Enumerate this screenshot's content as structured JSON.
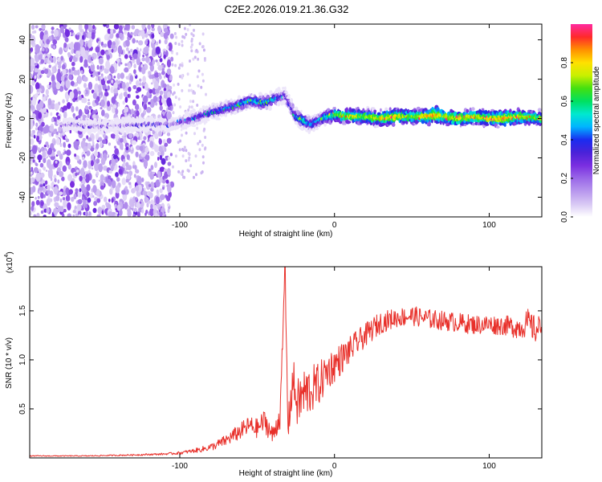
{
  "figure": {
    "title": "C2E2.2026.019.21.36.G32"
  },
  "colors": {
    "axis": "#000000",
    "snr_line": "#e8302a",
    "colormap": [
      "#ffffff",
      "#d8c8f4",
      "#b898ee",
      "#9a68e8",
      "#7a2ee0",
      "#4b22d8",
      "#1b2cf0",
      "#00b4ff",
      "#00e8d0",
      "#00e060",
      "#44e010",
      "#c8f000",
      "#ffe000",
      "#ff9000",
      "#ff2a2a",
      "#ff2aa0"
    ]
  },
  "chart_data": [
    {
      "type": "heatmap",
      "title": "",
      "xlabel": "Height of straight line (km)",
      "ylabel": "Frequency (Hz)",
      "xlim": [
        -197,
        134
      ],
      "ylim": [
        -50,
        48
      ],
      "xticks": [
        -100,
        0,
        100
      ],
      "xtick_labels": [
        "-100",
        "0",
        "100"
      ],
      "yticks": [
        -40,
        -20,
        0,
        20,
        40
      ],
      "ytick_labels": [
        "-40",
        "-20",
        "0",
        "20",
        "40"
      ],
      "colorbar": {
        "label": "Normalized spectral amplitude",
        "range": [
          0,
          1
        ],
        "ticks": [
          0.0,
          0.2,
          0.4,
          0.6,
          0.8
        ],
        "tick_labels": [
          "0.0",
          "0.2",
          "0.4",
          "0.6",
          "0.8"
        ]
      },
      "noise_region_x": [
        -197,
        -105
      ],
      "sparse_region_x": [
        -105,
        -83
      ],
      "ridge": {
        "x": [
          -175,
          -150,
          -125,
          -105,
          -95,
          -80,
          -65,
          -55,
          -45,
          -38,
          -32,
          -25,
          -20,
          -15,
          -8,
          0,
          10,
          20,
          30,
          40,
          50,
          60,
          65,
          70,
          80,
          90,
          100,
          110,
          120,
          134
        ],
        "y": [
          -3,
          -4,
          -3,
          -3,
          -1,
          3,
          6,
          9,
          8,
          10,
          12,
          1,
          -1,
          -3,
          0,
          2,
          1,
          1,
          0,
          1,
          1,
          1,
          2,
          1,
          0,
          1,
          0,
          0,
          1,
          0
        ],
        "amplitude": [
          0.25,
          0.2,
          0.25,
          0.3,
          0.4,
          0.5,
          0.55,
          0.6,
          0.6,
          0.55,
          0.4,
          0.55,
          0.65,
          0.55,
          0.6,
          0.75,
          0.85,
          0.8,
          0.85,
          0.9,
          0.8,
          0.9,
          0.95,
          0.85,
          0.9,
          0.85,
          0.9,
          0.95,
          0.85,
          0.75
        ]
      }
    },
    {
      "type": "line",
      "title": "",
      "xlabel": "Height of straight line (km)",
      "ylabel": "SNR (10 * v/v)",
      "exponent_label": "(x10",
      "exponent_power": "4",
      "exponent_close": ")",
      "xlim": [
        -197,
        134
      ],
      "ylim": [
        0,
        1.95
      ],
      "xticks": [
        -100,
        0,
        100
      ],
      "xtick_labels": [
        "-100",
        "0",
        "100"
      ],
      "yticks": [
        0.5,
        1.0,
        1.5
      ],
      "ytick_labels": [
        "0.5",
        "1.0",
        "1.5"
      ],
      "series": [
        {
          "name": "SNR",
          "x": [
            -197,
            -160,
            -130,
            -110,
            -100,
            -92,
            -85,
            -78,
            -70,
            -63,
            -55,
            -50,
            -45,
            -40,
            -35,
            -32,
            -30,
            -27,
            -24,
            -20,
            -15,
            -10,
            -5,
            0,
            5,
            10,
            15,
            20,
            25,
            30,
            40,
            50,
            60,
            70,
            80,
            90,
            100,
            110,
            120,
            125,
            130,
            134
          ],
          "y": [
            0.02,
            0.02,
            0.03,
            0.04,
            0.05,
            0.07,
            0.09,
            0.12,
            0.18,
            0.25,
            0.33,
            0.3,
            0.38,
            0.22,
            0.45,
            1.9,
            0.3,
            0.8,
            0.55,
            0.65,
            0.7,
            0.75,
            0.88,
            0.95,
            1.02,
            1.1,
            1.18,
            1.25,
            1.32,
            1.38,
            1.43,
            1.45,
            1.42,
            1.4,
            1.38,
            1.36,
            1.36,
            1.35,
            1.33,
            1.38,
            1.3,
            1.35
          ],
          "amplitude": [
            0.005,
            0.005,
            0.008,
            0.01,
            0.015,
            0.02,
            0.03,
            0.04,
            0.06,
            0.08,
            0.1,
            0.1,
            0.12,
            0.1,
            0.15,
            0.1,
            0.15,
            0.25,
            0.25,
            0.28,
            0.25,
            0.22,
            0.2,
            0.18,
            0.16,
            0.14,
            0.13,
            0.12,
            0.12,
            0.11,
            0.1,
            0.1,
            0.1,
            0.1,
            0.1,
            0.1,
            0.1,
            0.1,
            0.12,
            0.14,
            0.14,
            0.12
          ]
        }
      ]
    }
  ]
}
